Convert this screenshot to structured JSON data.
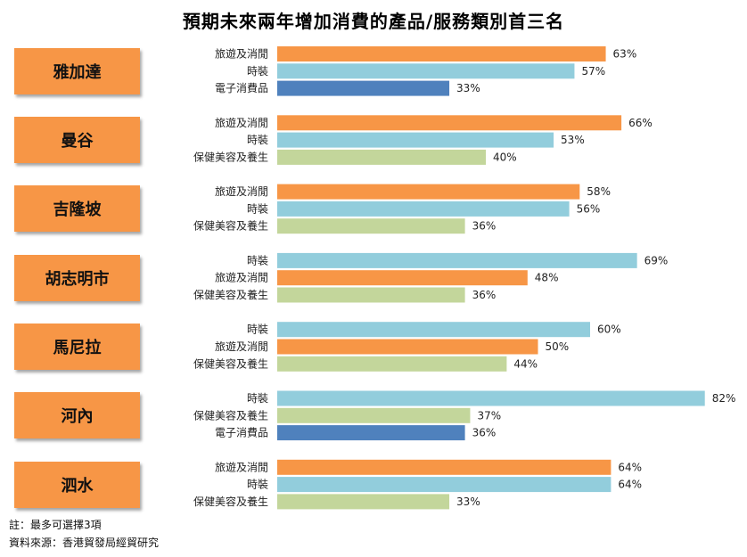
{
  "title": "預期未來兩年增加消費的產品/服務類別首三名",
  "footnote": "註：最多可選擇3項",
  "source": "資料來源：香港貿發局經貿研究",
  "colors": {
    "旅遊及消閒": "#f79646",
    "時裝": "#92cddc",
    "電子消費品": "#4f81bd",
    "保健美容及養生": "#c3d69b",
    "city_box": "#f79646"
  },
  "chart_data": {
    "type": "bar",
    "orientation": "horizontal",
    "title": "預期未來兩年增加消費的產品/服務類別首三名",
    "unit": "%",
    "xlim": [
      0,
      100
    ],
    "grid": false,
    "groups": [
      {
        "city": "雅加達",
        "items": [
          {
            "label": "旅遊及消閒",
            "value": 63,
            "value_label": "63%"
          },
          {
            "label": "時裝",
            "value": 57,
            "value_label": "57%"
          },
          {
            "label": "電子消費品",
            "value": 33,
            "value_label": "33%"
          }
        ]
      },
      {
        "city": "曼谷",
        "items": [
          {
            "label": "旅遊及消閒",
            "value": 66,
            "value_label": "66%"
          },
          {
            "label": "時裝",
            "value": 53,
            "value_label": "53%"
          },
          {
            "label": "保健美容及養生",
            "value": 40,
            "value_label": "40%"
          }
        ]
      },
      {
        "city": "吉隆坡",
        "items": [
          {
            "label": "旅遊及消閒",
            "value": 58,
            "value_label": "58%"
          },
          {
            "label": "時裝",
            "value": 56,
            "value_label": "56%"
          },
          {
            "label": "保健美容及養生",
            "value": 36,
            "value_label": "36%"
          }
        ]
      },
      {
        "city": "胡志明市",
        "items": [
          {
            "label": "時裝",
            "value": 69,
            "value_label": "69%"
          },
          {
            "label": "旅遊及消閒",
            "value": 48,
            "value_label": "48%"
          },
          {
            "label": "保健美容及養生",
            "value": 36,
            "value_label": "36%"
          }
        ]
      },
      {
        "city": "馬尼拉",
        "items": [
          {
            "label": "時裝",
            "value": 60,
            "value_label": "60%"
          },
          {
            "label": "旅遊及消閒",
            "value": 50,
            "value_label": "50%"
          },
          {
            "label": "保健美容及養生",
            "value": 44,
            "value_label": "44%"
          }
        ]
      },
      {
        "city": "河內",
        "items": [
          {
            "label": "時裝",
            "value": 82,
            "value_label": "82%"
          },
          {
            "label": "保健美容及養生",
            "value": 37,
            "value_label": "37%"
          },
          {
            "label": "電子消費品",
            "value": 36,
            "value_label": "36%"
          }
        ]
      },
      {
        "city": "泗水",
        "items": [
          {
            "label": "旅遊及消閒",
            "value": 64,
            "value_label": "64%"
          },
          {
            "label": "時裝",
            "value": 64,
            "value_label": "64%"
          },
          {
            "label": "保健美容及養生",
            "value": 33,
            "value_label": "33%"
          }
        ]
      }
    ]
  }
}
